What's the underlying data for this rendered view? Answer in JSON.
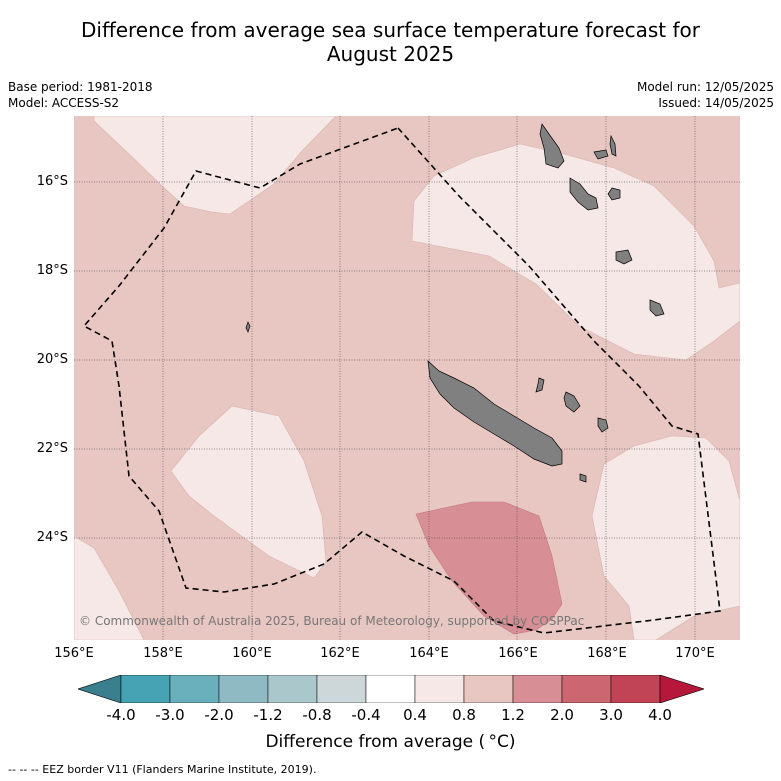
{
  "title_line1": "Difference from average sea surface temperature forecast for",
  "title_line2": "August 2025",
  "base_period": "Base period: 1981-2018",
  "model": "Model: ACCESS-S2",
  "model_run": "Model run: 12/05/2025",
  "issued": "Issued: 14/05/2025",
  "lat_labels": [
    "16°S",
    "18°S",
    "20°S",
    "22°S",
    "24°S"
  ],
  "lon_labels": [
    "156°E",
    "158°E",
    "160°E",
    "162°E",
    "164°E",
    "166°E",
    "168°E",
    "170°E"
  ],
  "copyright": "© Commonwealth of Australia 2025, Bureau of Meteorology, supported by COSPPac",
  "colorbar": {
    "ticks": [
      "-4.0",
      "-3.0",
      "-2.0",
      "-1.2",
      "-0.8",
      "-0.4",
      "0.4",
      "0.8",
      "1.2",
      "2.0",
      "3.0",
      "4.0"
    ],
    "colors": [
      "#3a7f8e",
      "#45a3b3",
      "#6aafbc",
      "#8fbac4",
      "#aac8cc",
      "#cdd7d9",
      "#ffffff",
      "#f5e8e6",
      "#e8c6c1",
      "#d78f95",
      "#cc6670",
      "#c04455",
      "#b5183a"
    ],
    "title": "Difference from average ( °C)"
  },
  "legend_note": "--  --  -- EEZ border V11 (Flanders Marine Institute, 2019).",
  "map_colors": {
    "band_0_4_0_8": "#f5e8e6",
    "band_0_8_1_2": "#e8c6c1",
    "band_1_2_2_0": "#d78f95",
    "land": "#808080"
  }
}
